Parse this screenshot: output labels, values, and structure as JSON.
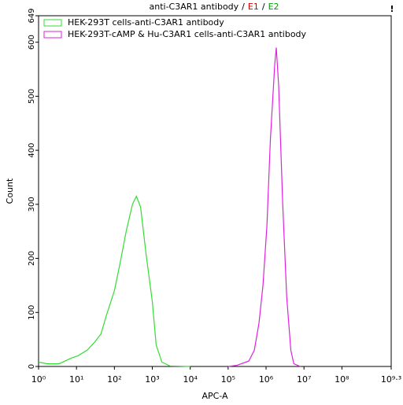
{
  "chart_data": {
    "type": "line",
    "title_parts": [
      {
        "text": "anti-C3AR1 antibody",
        "color": "#000000"
      },
      {
        "text": "/",
        "color": "#000000"
      },
      {
        "text": "E1",
        "color": "#d00000"
      },
      {
        "text": "/",
        "color": "#000000"
      },
      {
        "text": "E2",
        "color": "#00a000"
      }
    ],
    "corner_mark": "!",
    "x_label": "APC-A",
    "y_label": "Count",
    "x_scale": "log",
    "xlim": [
      1,
      1995262315
    ],
    "xticks": [
      {
        "value": 1,
        "label": "10⁰"
      },
      {
        "value": 10,
        "label": "10¹"
      },
      {
        "value": 100,
        "label": "10²"
      },
      {
        "value": 1000,
        "label": "10³"
      },
      {
        "value": 10000,
        "label": "10⁴"
      },
      {
        "value": 100000,
        "label": "10⁵"
      },
      {
        "value": 1000000,
        "label": "10⁶"
      },
      {
        "value": 10000000,
        "label": "10⁷"
      },
      {
        "value": 100000000,
        "label": "10⁸"
      },
      {
        "value": 1995262315,
        "label": "10⁹·³"
      }
    ],
    "ylim": [
      0,
      649
    ],
    "yticks": [
      0,
      100,
      200,
      300,
      400,
      500,
      600,
      649
    ],
    "legend": "upper left",
    "series": [
      {
        "name": "HEK-293T cells-anti-C3AR1 antibody",
        "color": "#33dd33",
        "x": [
          1,
          1.7,
          3.5,
          7,
          11,
          19,
          30,
          44,
          62,
          100,
          140,
          204,
          300,
          380,
          490,
          680,
          1000,
          1260,
          1780,
          2900,
          10000
        ],
        "values": [
          8,
          5,
          5,
          15,
          20,
          30,
          45,
          60,
          95,
          140,
          190,
          250,
          300,
          315,
          295,
          210,
          120,
          40,
          8,
          1,
          0
        ]
      },
      {
        "name": "HEK-293T-cAMP & Hu-C3AR1 cells-anti-C3AR1 antibody",
        "color": "#dd22dd",
        "x": [
          100000,
          170000,
          350000,
          490000,
          650000,
          830000,
          1050000,
          1300000,
          1700000,
          1860000,
          2150000,
          2750000,
          3500000,
          4500000,
          5400000,
          8000000
        ],
        "values": [
          0,
          2,
          10,
          30,
          80,
          150,
          260,
          420,
          560,
          590,
          520,
          300,
          130,
          30,
          5,
          0
        ]
      }
    ]
  }
}
